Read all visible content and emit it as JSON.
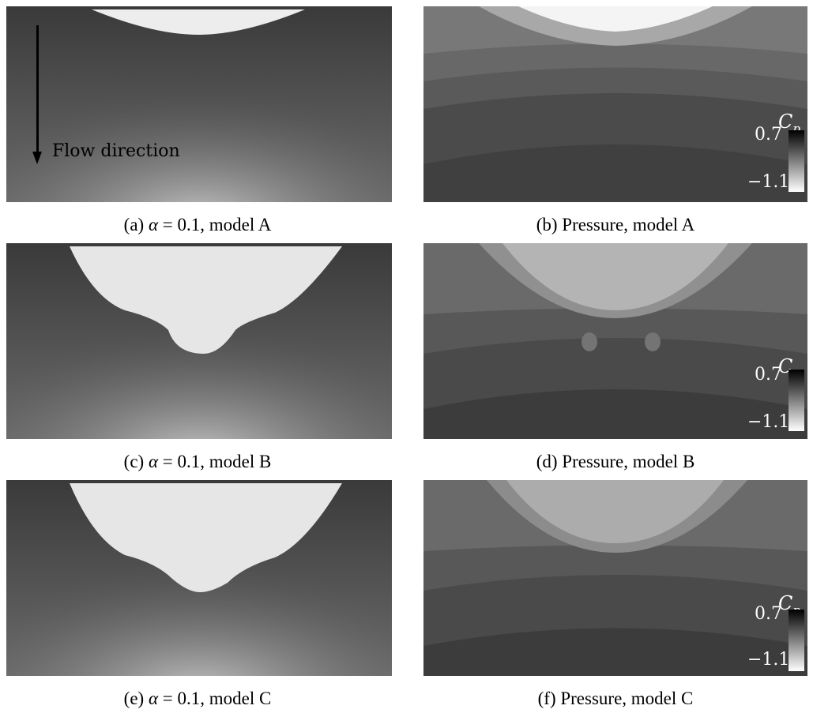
{
  "figure": {
    "panels": [
      {
        "id": "a",
        "caption_prefix": "(a) ",
        "caption_alpha": "α",
        "caption_suffix": " = 0.1, model A"
      },
      {
        "id": "b",
        "caption": "(b) Pressure, model A"
      },
      {
        "id": "c",
        "caption_prefix": "(c) ",
        "caption_alpha": "α",
        "caption_suffix": " = 0.1, model B"
      },
      {
        "id": "d",
        "caption": "(d) Pressure, model B"
      },
      {
        "id": "e",
        "caption_prefix": "(e) ",
        "caption_alpha": "α",
        "caption_suffix": " = 0.1, model C"
      },
      {
        "id": "f",
        "caption": "(f) Pressure, model C"
      }
    ],
    "annotation": {
      "flow_label": "Flow direction"
    },
    "colorbar": {
      "symbol": "C",
      "subscript": "p",
      "max_label": "0.7",
      "min_label": "−1.1"
    }
  },
  "colors": {
    "panel_bg": "#3d3d3d",
    "light_region": "#e8e8e8",
    "text_on_dark": "#ffffff"
  }
}
